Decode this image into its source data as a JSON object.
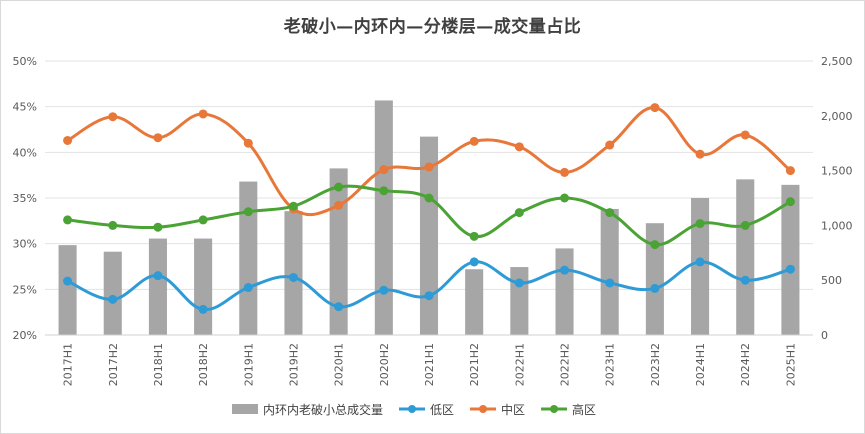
{
  "chart_data": {
    "type": "bar",
    "title": "老破小—内环内—分楼层—成交量占比",
    "categories": [
      "2017H1",
      "2017H2",
      "2018H1",
      "2018H2",
      "2019H1",
      "2019H2",
      "2020H1",
      "2020H2",
      "2021H1",
      "2021H2",
      "2022H1",
      "2022H2",
      "2023H1",
      "2023H2",
      "2024H1",
      "2024H2",
      "2025H1"
    ],
    "y_left": {
      "ticks": [
        "20%",
        "25%",
        "30%",
        "35%",
        "40%",
        "45%",
        "50%"
      ],
      "min": 20,
      "max": 50
    },
    "y_right": {
      "ticks": [
        "0",
        "500",
        "1,000",
        "1,500",
        "2,000",
        "2,500"
      ],
      "min": 0,
      "max": 2500
    },
    "grid": true,
    "legend_position": "bottom",
    "series": [
      {
        "name": "内环内老破小总成交量",
        "type": "bar",
        "axis": "right",
        "color": "#a6a6a6",
        "values": [
          820,
          760,
          880,
          880,
          1400,
          1130,
          1520,
          2140,
          1810,
          600,
          620,
          790,
          1150,
          1020,
          1250,
          1420,
          1370
        ]
      },
      {
        "name": "低区",
        "type": "line",
        "axis": "left",
        "color": "#2e9bd6",
        "values": [
          25.9,
          23.9,
          26.5,
          22.8,
          25.2,
          26.3,
          23.1,
          24.9,
          24.3,
          28.0,
          25.7,
          27.1,
          25.7,
          25.1,
          28.0,
          26.0,
          27.2
        ]
      },
      {
        "name": "中区",
        "type": "line",
        "axis": "left",
        "color": "#e8773a",
        "values": [
          41.3,
          43.9,
          41.6,
          44.2,
          41.0,
          33.8,
          34.2,
          38.1,
          38.4,
          41.2,
          40.6,
          37.8,
          40.8,
          44.9,
          39.8,
          41.9,
          38.0
        ]
      },
      {
        "name": "高区",
        "type": "line",
        "axis": "left",
        "color": "#4aa334",
        "values": [
          32.6,
          32.0,
          31.8,
          32.6,
          33.5,
          34.1,
          36.2,
          35.8,
          35.0,
          30.8,
          33.4,
          35.0,
          33.4,
          29.9,
          32.2,
          32.0,
          34.6
        ]
      }
    ]
  }
}
